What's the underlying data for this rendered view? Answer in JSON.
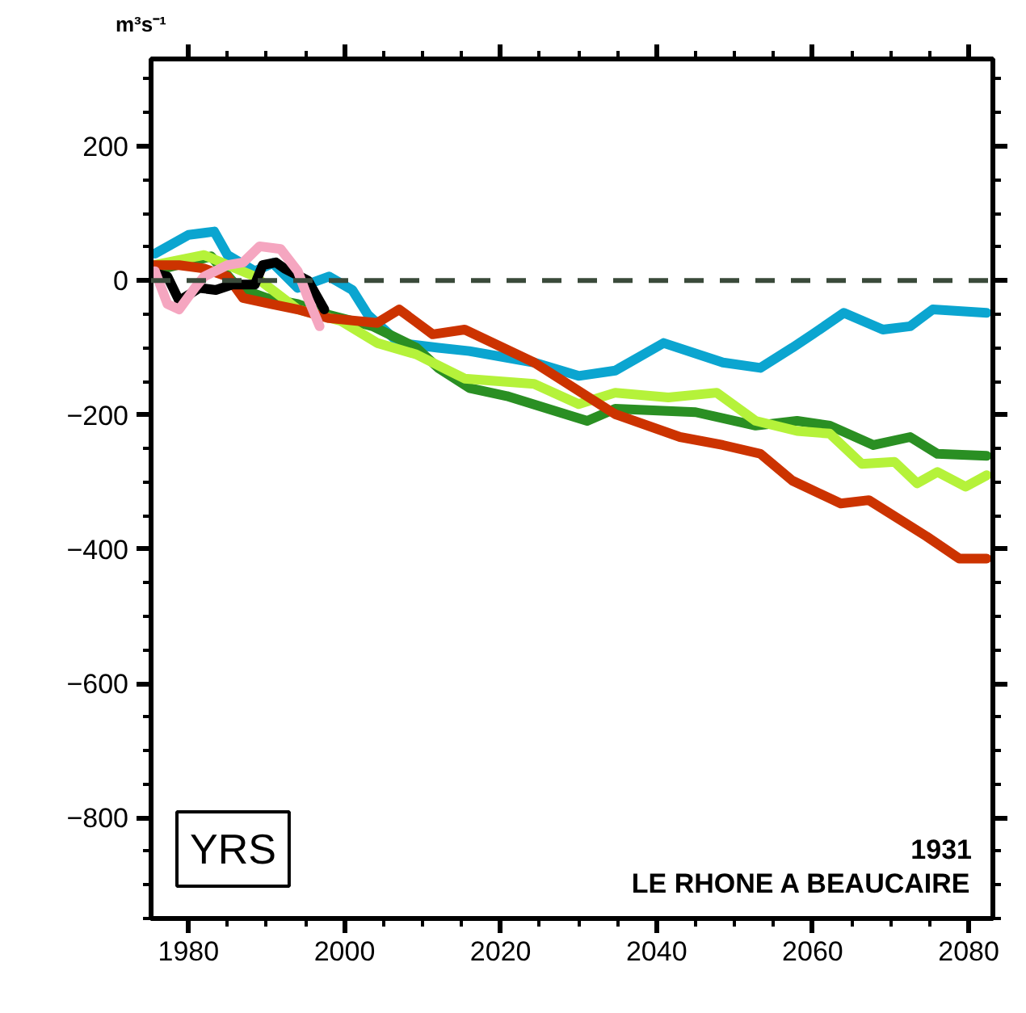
{
  "chart_data": {
    "type": "line",
    "ylabel": "m³s⁻¹",
    "xlim": [
      1975.2,
      2083.1
    ],
    "ylim": [
      -950,
      330
    ],
    "xticks": [
      1980,
      2000,
      2020,
      2040,
      2060,
      2080
    ],
    "yticks": [
      -800,
      -600,
      -400,
      -200,
      0,
      200
    ],
    "grid": false,
    "line_style": "solid",
    "ref_lines": [
      {
        "axis": "y",
        "value": 0,
        "label": null,
        "color": "#3a4a3a",
        "line_style": "dashed"
      }
    ],
    "annotations": [
      "YRS",
      "1931",
      "LE RHONE A BEAUCAIRE"
    ],
    "series": [
      {
        "color": "#0ba5d0",
        "x": [
          1975.7,
          1980,
          1983.3,
          1985,
          1988.5,
          1990.8,
          1994,
          1998,
          2001,
          2003,
          2007,
          2012,
          2016,
          2024.3,
          2030,
          2034.7,
          2040.9,
          2048.5,
          2053.3,
          2057.4,
          2060,
          2064,
          2069,
          2072.5,
          2075.4,
          2082.3
        ],
        "values": [
          40,
          68,
          73,
          38,
          14,
          26,
          -11,
          6,
          -14,
          -51,
          -93,
          -100,
          -105,
          -122,
          -142,
          -134,
          -93,
          -122,
          -130,
          -100,
          -80,
          -48,
          -73,
          -68,
          -43,
          -48
        ]
      },
      {
        "color": "#2a8f23",
        "x": [
          1975.5,
          1982.9,
          1986.4,
          1990,
          1994,
          1998,
          2003.6,
          2009.2,
          2012,
          2016,
          2020.8,
          2031.1,
          2034.7,
          2045,
          2052.7,
          2058,
          2062.2,
          2067.8,
          2072.5,
          2076,
          2082.3
        ],
        "values": [
          14,
          36,
          -11,
          -26,
          -35,
          -51,
          -68,
          -100,
          -130,
          -160,
          -172,
          -209,
          -191,
          -196,
          -216,
          -209,
          -216,
          -245,
          -233,
          -258,
          -261
        ]
      },
      {
        "color": "#b5f23a",
        "x": [
          1975.6,
          1982,
          1988.5,
          1994,
          1999.5,
          2004.2,
          2009.2,
          2013.3,
          2015.4,
          2024.3,
          2030,
          2034.7,
          2041.5,
          2047.7,
          2052.7,
          2058,
          2062.2,
          2066.3,
          2070.5,
          2073.4,
          2076,
          2079.6,
          2082.3
        ],
        "values": [
          23,
          38,
          6,
          -43,
          -60,
          -93,
          -110,
          -134,
          -146,
          -154,
          -184,
          -167,
          -174,
          -167,
          -209,
          -224,
          -228,
          -273,
          -270,
          -302,
          -285,
          -307,
          -290
        ]
      },
      {
        "color": "#cc3300",
        "x": [
          1975.2,
          1978.8,
          1982,
          1985,
          1987,
          1990.6,
          1994,
          1998,
          2004.2,
          2007,
          2011.3,
          2015.4,
          2024.3,
          2034.7,
          2043,
          2048.5,
          2053.3,
          2057.4,
          2063.6,
          2067.2,
          2074.6,
          2078.8,
          2082.3
        ],
        "values": [
          23,
          23,
          18,
          6,
          -26,
          -35,
          -43,
          -56,
          -63,
          -43,
          -80,
          -73,
          -122,
          -199,
          -233,
          -245,
          -258,
          -298,
          -332,
          -327,
          -381,
          -414,
          -414
        ]
      },
      {
        "color": "#000000",
        "x": [
          1976,
          1977.3,
          1978.8,
          1981.4,
          1983.5,
          1985.6,
          1988.5,
          1989.5,
          1991.2,
          1992.3,
          1995.3,
          1997.4
        ],
        "values": [
          10,
          6,
          -30,
          -11,
          -14,
          -6,
          -6,
          23,
          27,
          18,
          0,
          -43
        ]
      },
      {
        "color": "#f5a6c0",
        "x": [
          1975.7,
          1977.3,
          1978.8,
          1980.8,
          1982,
          1985,
          1987,
          1989.1,
          1991.8,
          1994,
          1995.3,
          1996.8
        ],
        "values": [
          14,
          -35,
          -43,
          -11,
          6,
          23,
          27,
          51,
          47,
          14,
          -26,
          -68
        ]
      }
    ]
  }
}
